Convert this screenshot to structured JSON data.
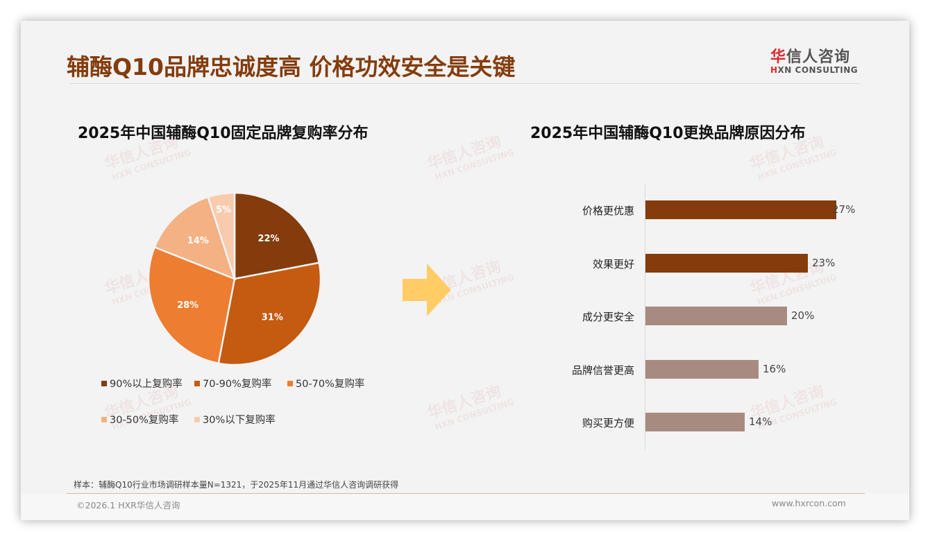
{
  "header": {
    "title": "辅酶Q10品牌忠诚度高 价格功效安全是关键",
    "logo_cn_first": "华",
    "logo_cn_rest": "信人咨询",
    "logo_en_first": "H",
    "logo_en_rest": "XN CONSULTING"
  },
  "watermark": {
    "cn": "华信人咨询",
    "en": "HXN CONSULTING"
  },
  "colors": {
    "title": "#843c0c",
    "pie": [
      "#843c0c",
      "#c55a11",
      "#ed7d31",
      "#f4b183",
      "#f8cbad"
    ],
    "bar_dark": "#843c0c",
    "bar_light": "#a88b80",
    "arrow": "#ffcc66"
  },
  "left_chart": {
    "title": "2025年中国辅酶Q10固定品牌复购率分布",
    "slice_labels": [
      "22%",
      "31%",
      "28%",
      "14%",
      "5%"
    ],
    "legend": [
      "90%以上复购率",
      "70-90%复购率",
      "50-70%复购率",
      "30-50%复购率",
      "30%以下复购率"
    ]
  },
  "right_chart": {
    "title": "2025年中国辅酶Q10更换品牌原因分布",
    "labels": [
      "价格更优惠",
      "效果更好",
      "成分更安全",
      "品牌信誉更高",
      "购买更方便"
    ],
    "values": [
      "27%",
      "23%",
      "20%",
      "16%",
      "14%"
    ]
  },
  "chart_data": [
    {
      "type": "pie",
      "title": "2025年中国辅酶Q10固定品牌复购率分布",
      "categories": [
        "90%以上复购率",
        "70-90%复购率",
        "50-70%复购率",
        "30-50%复购率",
        "30%以下复购率"
      ],
      "values": [
        22,
        31,
        28,
        14,
        5
      ],
      "unit": "%",
      "legend_position": "bottom"
    },
    {
      "type": "bar",
      "orientation": "horizontal",
      "title": "2025年中国辅酶Q10更换品牌原因分布",
      "categories": [
        "价格更优惠",
        "效果更好",
        "成分更安全",
        "品牌信誉更高",
        "购买更方便"
      ],
      "values": [
        27,
        23,
        20,
        16,
        14
      ],
      "unit": "%",
      "grid": false
    }
  ],
  "footer": {
    "note": "样本：辅酶Q10行业市场调研样本量N=1321，于2025年11月通过华信人咨询调研获得",
    "copyright": "©2026.1 HXR华信人咨询",
    "website": "www.hxrcon.com"
  }
}
